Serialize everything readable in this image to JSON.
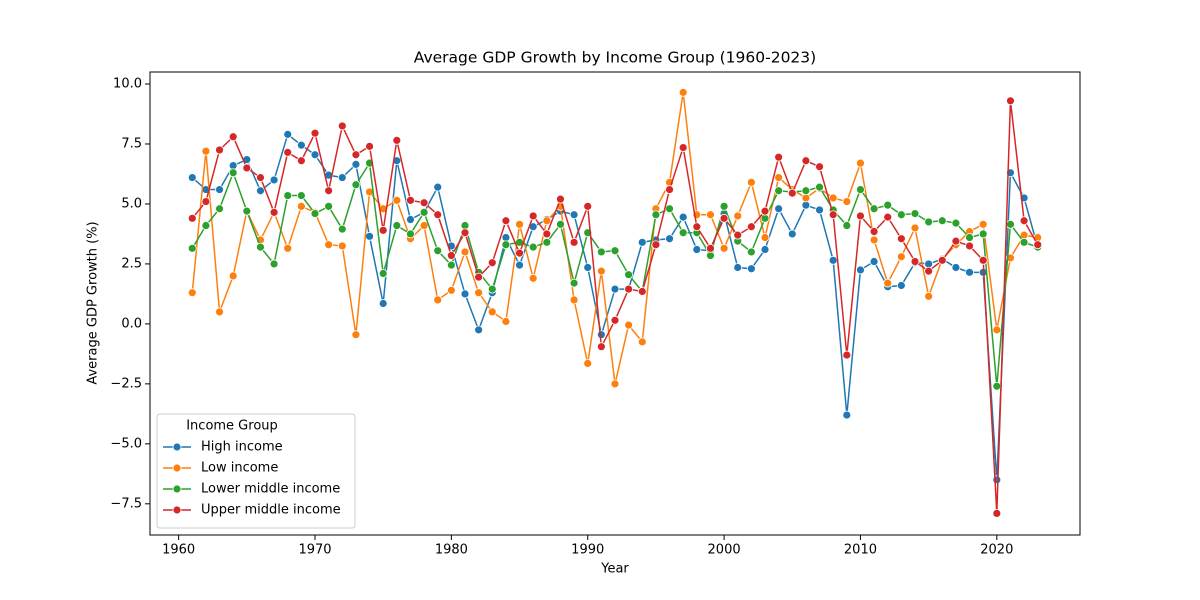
{
  "chart_data": {
    "type": "line",
    "title": "Average GDP Growth by Income Group (1960-2023)",
    "x_label": "Year",
    "y_label": "Average GDP Growth (%)",
    "legend_title": "Income Group",
    "legend_position": "lower left",
    "x": [
      1961,
      1962,
      1963,
      1964,
      1965,
      1966,
      1967,
      1968,
      1969,
      1970,
      1971,
      1972,
      1973,
      1974,
      1975,
      1976,
      1977,
      1978,
      1979,
      1980,
      1981,
      1982,
      1983,
      1984,
      1985,
      1986,
      1987,
      1988,
      1989,
      1990,
      1991,
      1992,
      1993,
      1994,
      1995,
      1996,
      1997,
      1998,
      1999,
      2000,
      2001,
      2002,
      2003,
      2004,
      2005,
      2006,
      2007,
      2008,
      2009,
      2010,
      2011,
      2012,
      2013,
      2014,
      2015,
      2016,
      2017,
      2018,
      2019,
      2020,
      2021,
      2022,
      2023
    ],
    "series": [
      {
        "name": "High income",
        "color": "#1f77b4",
        "values": [
          6.1,
          5.6,
          5.6,
          6.6,
          6.85,
          5.55,
          6.0,
          7.9,
          7.45,
          7.05,
          6.2,
          6.1,
          6.65,
          3.65,
          0.85,
          6.8,
          4.35,
          4.65,
          5.7,
          3.25,
          1.25,
          -0.25,
          1.3,
          3.6,
          2.45,
          4.05,
          4.35,
          4.7,
          4.55,
          2.35,
          -0.45,
          1.45,
          1.45,
          3.4,
          3.5,
          3.55,
          4.45,
          3.1,
          3.05,
          4.6,
          2.35,
          2.3,
          3.1,
          4.8,
          3.75,
          4.95,
          4.75,
          2.65,
          -3.8,
          2.25,
          2.6,
          1.55,
          1.6,
          2.55,
          2.5,
          2.7,
          2.35,
          2.15,
          2.15,
          -6.5,
          6.3,
          5.25,
          3.2
        ]
      },
      {
        "name": "Low income",
        "color": "#ff7f0e",
        "values": [
          1.3,
          7.2,
          0.5,
          2.0,
          4.7,
          3.5,
          4.65,
          3.15,
          4.9,
          4.65,
          3.3,
          3.25,
          -0.45,
          5.5,
          4.8,
          5.15,
          3.55,
          4.1,
          1.0,
          1.4,
          3.0,
          1.3,
          0.5,
          0.1,
          4.15,
          1.9,
          4.3,
          4.9,
          1.0,
          -1.65,
          2.2,
          -2.5,
          -0.05,
          -0.75,
          4.8,
          5.9,
          9.65,
          4.55,
          4.55,
          3.15,
          4.5,
          5.9,
          3.6,
          6.1,
          5.6,
          5.25,
          5.65,
          5.25,
          5.1,
          6.7,
          3.5,
          1.7,
          2.8,
          4.0,
          1.15,
          2.7,
          3.3,
          3.85,
          4.15,
          -0.25,
          2.75,
          3.7,
          3.6
        ]
      },
      {
        "name": "Lower middle income",
        "color": "#2ca02c",
        "values": [
          3.15,
          4.1,
          4.8,
          6.3,
          4.7,
          3.2,
          2.5,
          5.35,
          5.35,
          4.6,
          4.9,
          3.95,
          5.8,
          6.7,
          2.1,
          4.1,
          3.75,
          4.65,
          3.05,
          2.45,
          4.1,
          2.15,
          1.45,
          3.3,
          3.4,
          3.2,
          3.4,
          4.15,
          1.7,
          3.8,
          3.0,
          3.05,
          2.05,
          1.35,
          4.55,
          4.8,
          3.8,
          3.8,
          2.85,
          4.9,
          3.45,
          3.0,
          4.4,
          5.55,
          5.5,
          5.55,
          5.7,
          4.75,
          4.1,
          5.6,
          4.8,
          4.95,
          4.55,
          4.6,
          4.25,
          4.3,
          4.2,
          3.6,
          3.75,
          -2.6,
          4.15,
          3.4,
          3.2
        ]
      },
      {
        "name": "Upper middle income",
        "color": "#d62728",
        "values": [
          4.4,
          5.1,
          7.25,
          7.8,
          6.5,
          6.1,
          4.65,
          7.15,
          6.8,
          7.95,
          5.55,
          8.25,
          7.05,
          7.4,
          3.9,
          7.65,
          5.15,
          5.05,
          4.55,
          2.85,
          3.8,
          1.95,
          2.55,
          4.3,
          2.95,
          4.5,
          3.75,
          5.2,
          3.4,
          4.9,
          -0.95,
          0.15,
          1.45,
          1.35,
          3.3,
          5.6,
          7.35,
          4.05,
          3.15,
          4.4,
          3.7,
          4.05,
          4.7,
          6.95,
          5.45,
          6.8,
          6.55,
          4.55,
          -1.3,
          4.5,
          3.85,
          4.45,
          3.55,
          2.6,
          2.2,
          2.65,
          3.45,
          3.25,
          2.65,
          -7.9,
          9.3,
          4.3,
          3.3
        ]
      }
    ],
    "xlim": [
      1957.9,
      2026.1
    ],
    "xticks": [
      1960,
      1970,
      1980,
      1990,
      2000,
      2010,
      2020
    ],
    "ylim": [
      -8.8,
      10.5
    ],
    "yticks": [
      {
        "value": -7.5,
        "label": "−7.5"
      },
      {
        "value": -5,
        "label": "−5.0"
      },
      {
        "value": -2.5,
        "label": "−2.5"
      },
      {
        "value": 0,
        "label": "0.0"
      },
      2.5,
      {
        "value": 5,
        "label": "5.0"
      },
      7.5,
      {
        "value": 10,
        "label": "10.0"
      }
    ]
  }
}
